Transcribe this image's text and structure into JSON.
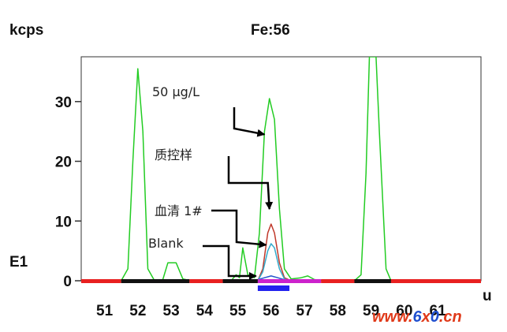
{
  "chart_data": {
    "type": "line",
    "title": "Fe:56",
    "ylabel": "kcps",
    "xlabel": "u",
    "y_side_label": "E1",
    "xlim": [
      50.3,
      62.3
    ],
    "ylim": [
      0,
      37.5
    ],
    "x_ticks": [
      51,
      52,
      53,
      54,
      55,
      56,
      57,
      58,
      59,
      60,
      61
    ],
    "x_tick_labels": [
      "51",
      "52",
      "53",
      "54",
      "55",
      "56",
      "57",
      "58",
      "59",
      "60",
      "61"
    ],
    "y_ticks": [
      0,
      10,
      20,
      30
    ],
    "y_tick_labels": [
      "0",
      "10",
      "20",
      "30"
    ],
    "series": [
      {
        "name": "50 µg/L",
        "color": "#22cc22",
        "points": [
          [
            50.3,
            0
          ],
          [
            51.5,
            0
          ],
          [
            51.7,
            2
          ],
          [
            51.85,
            20
          ],
          [
            52.0,
            35.5
          ],
          [
            52.15,
            25
          ],
          [
            52.3,
            2
          ],
          [
            52.5,
            0
          ],
          [
            52.75,
            0.2
          ],
          [
            52.9,
            3
          ],
          [
            53.15,
            3
          ],
          [
            53.35,
            0.3
          ],
          [
            53.6,
            0
          ],
          [
            54.8,
            0
          ],
          [
            54.95,
            1
          ],
          [
            55.05,
            0.5
          ],
          [
            55.15,
            5.5
          ],
          [
            55.3,
            1
          ],
          [
            55.5,
            0.5
          ],
          [
            55.65,
            8
          ],
          [
            55.8,
            25
          ],
          [
            55.95,
            30.5
          ],
          [
            56.1,
            27
          ],
          [
            56.25,
            12
          ],
          [
            56.4,
            2
          ],
          [
            56.6,
            0.3
          ],
          [
            56.9,
            0.5
          ],
          [
            57.1,
            0.8
          ],
          [
            57.3,
            0.2
          ],
          [
            57.6,
            0
          ],
          [
            58.5,
            0
          ],
          [
            58.7,
            1
          ],
          [
            58.85,
            18
          ],
          [
            58.95,
            37.5
          ],
          [
            59.15,
            37.5
          ],
          [
            59.25,
            25
          ],
          [
            59.45,
            2
          ],
          [
            59.6,
            0
          ],
          [
            62.3,
            0
          ]
        ]
      },
      {
        "name": "质控样",
        "color": "#c0392b",
        "points": [
          [
            55.6,
            0
          ],
          [
            55.75,
            2
          ],
          [
            55.9,
            8
          ],
          [
            56.0,
            9.5
          ],
          [
            56.1,
            8
          ],
          [
            56.25,
            3
          ],
          [
            56.4,
            0.5
          ],
          [
            56.6,
            0
          ]
        ]
      },
      {
        "name": "血清 1#",
        "color": "#33aacc",
        "points": [
          [
            55.6,
            0
          ],
          [
            55.75,
            1.5
          ],
          [
            55.9,
            5
          ],
          [
            56.0,
            6.2
          ],
          [
            56.1,
            5.5
          ],
          [
            56.25,
            2
          ],
          [
            56.4,
            0.3
          ],
          [
            56.6,
            0
          ]
        ]
      },
      {
        "name": "Blank",
        "color": "#2255cc",
        "points": [
          [
            55.5,
            0
          ],
          [
            55.8,
            0.5
          ],
          [
            56.0,
            0.8
          ],
          [
            56.2,
            0.5
          ],
          [
            56.5,
            0
          ]
        ]
      }
    ],
    "annotations": [
      {
        "text": "50 µg/L",
        "target": [
          55.8,
          24.5
        ]
      },
      {
        "text": "质控样",
        "target": [
          55.95,
          12
        ]
      },
      {
        "text": "血清 1#",
        "target": [
          55.85,
          6
        ]
      },
      {
        "text": "Blank",
        "target": [
          55.55,
          0.8
        ]
      }
    ],
    "baseline_segments": [
      {
        "from": 50.3,
        "to": 51.5,
        "color": "#e82020"
      },
      {
        "from": 51.5,
        "to": 53.55,
        "color": "#111111"
      },
      {
        "from": 53.55,
        "to": 54.55,
        "color": "#e82020"
      },
      {
        "from": 54.55,
        "to": 55.6,
        "color": "#111111"
      },
      {
        "from": 55.6,
        "to": 57.5,
        "color": "#cc22cc"
      },
      {
        "from": 57.5,
        "to": 58.5,
        "color": "#e82020"
      },
      {
        "from": 58.5,
        "to": 59.6,
        "color": "#111111"
      },
      {
        "from": 59.6,
        "to": 62.3,
        "color": "#e82020"
      }
    ],
    "integration_window": {
      "from": 55.6,
      "to": 56.55,
      "color": "#2222ee"
    },
    "grid": false
  },
  "watermark": {
    "text": "www.6x0.cn",
    "colors": [
      "#e03a1a",
      "#1f4fcf"
    ]
  }
}
